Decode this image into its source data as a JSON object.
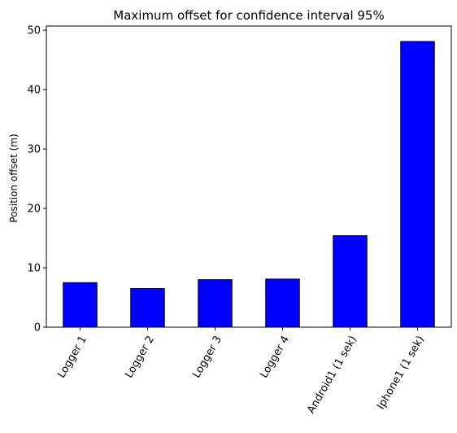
{
  "chart_data": {
    "type": "bar",
    "title": "Maximum offset for confidence interval 95%",
    "xlabel": "",
    "ylabel": "Position offset (m)",
    "categories": [
      "Logger 1",
      "Logger 2",
      "Logger 3",
      "Logger 4",
      "Android1 (1 sek)",
      "Iphone1 (1 sek)"
    ],
    "values": [
      7.5,
      6.5,
      8.0,
      8.1,
      15.4,
      48.1
    ],
    "ylim": [
      0,
      50.7
    ],
    "yticks": [
      0,
      10,
      20,
      30,
      40,
      50
    ],
    "bar_color": "#0000ff",
    "bar_edge_color": "#000000",
    "grid": false,
    "legend": "none",
    "x_tick_rotation": 60
  }
}
